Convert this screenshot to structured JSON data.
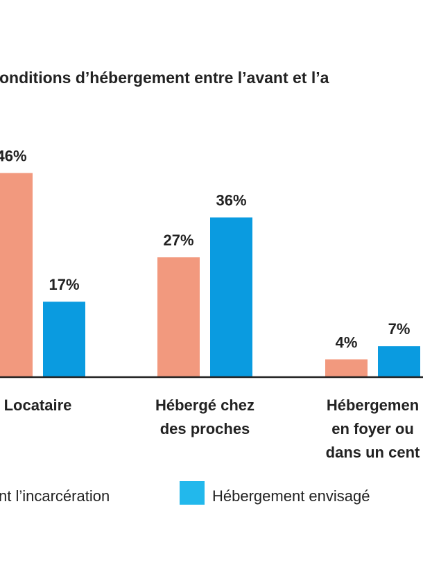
{
  "chart_data": {
    "type": "bar",
    "title": "onditions d’hébergement entre l’avant et l’a",
    "categories": [
      [
        "Locataire"
      ],
      [
        "Hébergé chez",
        "des proches"
      ],
      [
        "Hébergemen",
        "en foyer ou",
        "dans un cent"
      ]
    ],
    "series": [
      {
        "name": "nt l’incarcération",
        "values": [
          46,
          27,
          4
        ],
        "labels": [
          "46%",
          "27%",
          "4%"
        ],
        "color": "#f2997e"
      },
      {
        "name": "Hébergement envisagé",
        "values": [
          17,
          36,
          7
        ],
        "labels": [
          "17%",
          "36%",
          "7%"
        ],
        "color": "#0a9be0"
      }
    ],
    "legend_swatch_color_2": "#22b8ec",
    "ylim": [
      0,
      52
    ],
    "grid": false,
    "legend_position": "bottom"
  }
}
